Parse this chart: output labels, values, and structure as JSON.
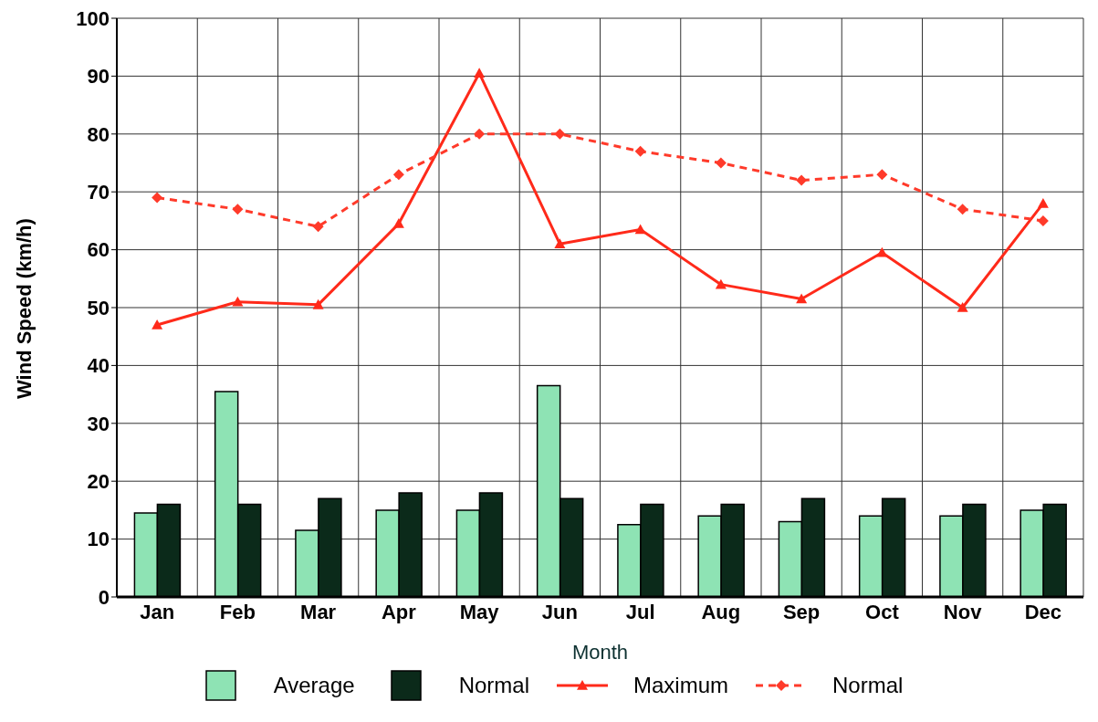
{
  "chart_data": {
    "type": "bar",
    "xlabel": "Month",
    "ylabel": "Wind Speed (km/h)",
    "categories": [
      "Jan",
      "Feb",
      "Mar",
      "Apr",
      "May",
      "Jun",
      "Jul",
      "Aug",
      "Sep",
      "Oct",
      "Nov",
      "Dec"
    ],
    "series": [
      {
        "name": "Average",
        "color": "#8ee3b4",
        "values": [
          14.5,
          35.5,
          11.5,
          15,
          15,
          36.5,
          12.5,
          14,
          13,
          14,
          14,
          15
        ]
      },
      {
        "name": "Normal",
        "color": "#0b2a1a",
        "values": [
          16,
          16,
          17,
          18,
          18,
          17,
          16,
          16,
          17,
          17,
          16,
          16
        ]
      },
      {
        "name": "Maximum",
        "type": "line",
        "color": "#ff2a1a",
        "marker": "triangle",
        "line_style": "solid",
        "values": [
          47,
          51,
          50.5,
          64.5,
          90.5,
          61,
          63.5,
          54,
          51.5,
          59.5,
          50,
          68
        ]
      },
      {
        "name": "Normal",
        "type": "line",
        "color": "#ff3a2a",
        "marker": "diamond",
        "line_style": "dashed",
        "values": [
          69,
          67,
          64,
          73,
          80,
          80,
          77,
          75,
          72,
          73,
          67,
          65
        ]
      }
    ],
    "ylim": [
      0,
      100
    ],
    "yticks": [
      0,
      10,
      20,
      30,
      40,
      50,
      60,
      70,
      80,
      90,
      100
    ],
    "grid": true,
    "legend": "bottom"
  }
}
